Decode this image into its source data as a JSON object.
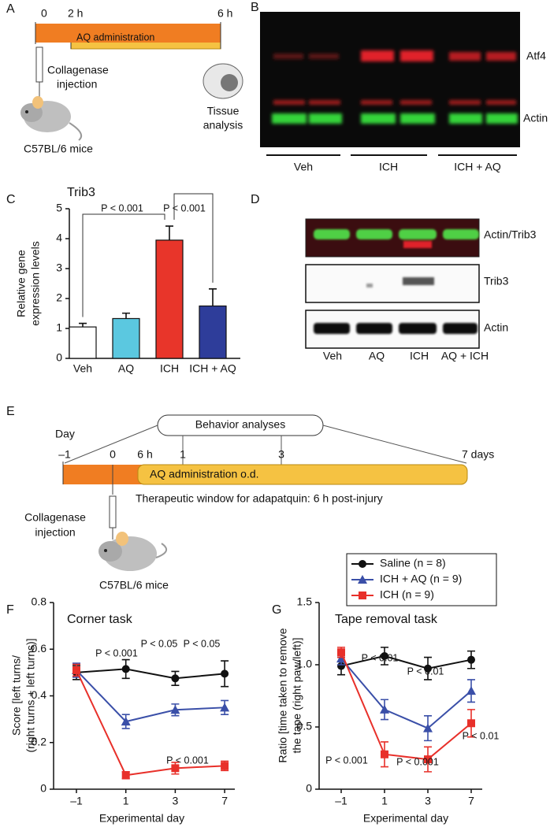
{
  "panel_labels": [
    "A",
    "B",
    "C",
    "D",
    "E",
    "F",
    "G"
  ],
  "panel_a": {
    "times": [
      "0",
      "2 h",
      "6 h"
    ],
    "bar_label": "AQ administration",
    "injection": [
      "Collagenase",
      "injection"
    ],
    "mice": "C57BL/6 mice",
    "analysis": [
      "Tissue",
      "analysis"
    ]
  },
  "panel_b": {
    "bands": [
      "Atf4",
      "Actin"
    ],
    "groups": [
      "Veh",
      "ICH",
      "ICH + AQ"
    ]
  },
  "panel_d": {
    "rows": [
      "Actin/Trib3",
      "Trib3",
      "Actin"
    ],
    "lanes": [
      "Veh",
      "AQ",
      "ICH",
      "AQ + ICH"
    ]
  },
  "panel_e": {
    "day": "Day",
    "times": [
      "–1",
      "0",
      "6 h",
      "1",
      "3",
      "7 days"
    ],
    "behavior": "Behavior analyses",
    "bar_label": "AQ administration  o.d.",
    "window": "Therapeutic window for adapatquin:  6 h post-injury",
    "injection": [
      "Collagenase",
      "injection"
    ],
    "mice": "C57BL/6 mice"
  },
  "chart_data": [
    {
      "type": "bar",
      "title": "Trib3",
      "y_label": [
        "Relative gene",
        "expression levels"
      ],
      "categories": [
        "Veh",
        "AQ",
        "ICH",
        "ICH + AQ"
      ],
      "values": [
        1.05,
        1.33,
        3.95,
        1.75
      ],
      "errors": [
        0.12,
        0.18,
        0.47,
        0.57
      ],
      "colors": [
        "#ffffff",
        "#5bc8e0",
        "#e8352a",
        "#2e3d9a"
      ],
      "ylim": [
        0,
        5
      ],
      "yticks": [
        0,
        1,
        2,
        3,
        4,
        5
      ],
      "annotations": [
        "P < 0.001",
        "P < 0.001"
      ]
    },
    {
      "type": "line",
      "title": "Corner task",
      "y_label": [
        "Score [left turns/",
        "(right turns + left turns)]"
      ],
      "x_label": "Experimental  day",
      "categories": [
        "–1",
        "1",
        "3",
        "7"
      ],
      "ylim": [
        0,
        0.8
      ],
      "yticks": [
        0,
        0.2,
        0.4,
        0.6,
        0.8
      ],
      "series": [
        {
          "name": "Saline (n = 8)",
          "color": "#111111",
          "marker": "circle",
          "values": [
            0.5,
            0.515,
            0.475,
            0.495
          ],
          "errors": [
            0.03,
            0.04,
            0.03,
            0.055
          ]
        },
        {
          "name": "ICH + AQ (n = 9)",
          "color": "#3a4fa8",
          "marker": "triangle",
          "values": [
            0.51,
            0.29,
            0.34,
            0.35
          ],
          "errors": [
            0.03,
            0.03,
            0.025,
            0.03
          ]
        },
        {
          "name": "ICH (n = 9)",
          "color": "#e8302a",
          "marker": "square",
          "values": [
            0.51,
            0.06,
            0.09,
            0.1
          ],
          "errors": [
            0.025,
            0.015,
            0.025,
            0.02
          ]
        }
      ],
      "annotations": [
        "P < 0.001",
        "P < 0.05",
        "P < 0.05",
        "P < 0.001"
      ]
    },
    {
      "type": "line",
      "title": "Tape removal task",
      "y_label": [
        "Ratio [time taken to remove",
        "the tape (right paw/left)]"
      ],
      "x_label": "Experimental  day",
      "categories": [
        "–1",
        "1",
        "3",
        "7"
      ],
      "ylim": [
        0,
        1.5
      ],
      "yticks": [
        0,
        0.5,
        {
          "value": 1,
          "label": "1.0"
        },
        1.5
      ],
      "series": [
        {
          "color": "#111111",
          "marker": "circle",
          "values": [
            0.99,
            1.07,
            0.97,
            1.04
          ],
          "errors": [
            0.07,
            0.07,
            0.09,
            0.07
          ]
        },
        {
          "color": "#3a4fa8",
          "marker": "triangle",
          "values": [
            1.05,
            0.64,
            0.49,
            0.79
          ],
          "errors": [
            0.05,
            0.08,
            0.1,
            0.09
          ]
        },
        {
          "color": "#e8302a",
          "marker": "square",
          "values": [
            1.1,
            0.28,
            0.24,
            0.53
          ],
          "errors": [
            0.04,
            0.1,
            0.1,
            0.11
          ]
        }
      ],
      "annotations": [
        "P < 0.01",
        "P < 0.01",
        "P < 0.01",
        "P < 0.001",
        "P < 0.001"
      ]
    }
  ]
}
